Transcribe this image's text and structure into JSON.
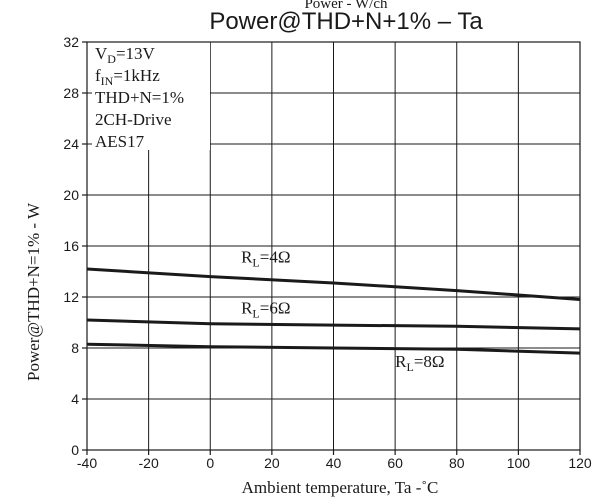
{
  "chart_data": {
    "type": "line",
    "top_text": "Power - W/ch",
    "title": "Power@THD+N+1% – Ta",
    "xlabel": "Ambient temperature, Ta  -˚C",
    "ylabel": "Power@THD+N=1% - W",
    "xlim": [
      -40,
      120
    ],
    "ylim": [
      0,
      32
    ],
    "x_ticks": [
      "-40",
      "-20",
      "0",
      "20",
      "40",
      "60",
      "80",
      "100",
      "120"
    ],
    "y_ticks": [
      "0",
      "4",
      "8",
      "12",
      "16",
      "20",
      "24",
      "28",
      "32"
    ],
    "grid": true,
    "conditions": {
      "vd": {
        "main": "V",
        "sub": "D",
        "rest": "=13V"
      },
      "fin": {
        "main": "f",
        "sub": "IN",
        "rest": "=1kHz"
      },
      "thd": "THD+N=1%",
      "drive": "2CH-Drive",
      "filter": "AES17"
    },
    "series": [
      {
        "name": "RL=4Ω",
        "label": {
          "main": "R",
          "sub": "L",
          "rest": "=4Ω"
        },
        "x": [
          -40,
          0,
          40,
          80,
          120
        ],
        "y": [
          14.2,
          13.6,
          13.1,
          12.5,
          11.8
        ]
      },
      {
        "name": "RL=6Ω",
        "label": {
          "main": "R",
          "sub": "L",
          "rest": "=6Ω"
        },
        "x": [
          -40,
          0,
          40,
          80,
          120
        ],
        "y": [
          10.2,
          9.9,
          9.8,
          9.7,
          9.5
        ]
      },
      {
        "name": "RL=8Ω",
        "label": {
          "main": "R",
          "sub": "L",
          "rest": "=8Ω"
        },
        "x": [
          -40,
          0,
          40,
          80,
          120
        ],
        "y": [
          8.3,
          8.1,
          8.0,
          7.9,
          7.6
        ]
      }
    ],
    "colors": {
      "line": "#1a1a1a",
      "grid": "#1a1a1a",
      "background": "#ffffff"
    }
  }
}
